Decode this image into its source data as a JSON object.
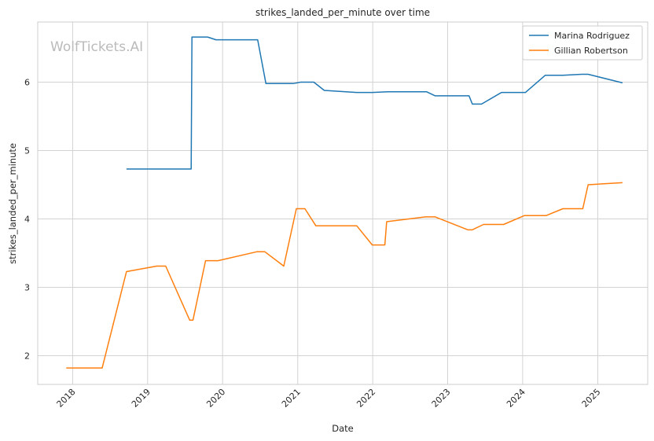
{
  "chart_data": {
    "type": "line",
    "title": "strikes_landed_per_minute over time",
    "xlabel": "Date",
    "ylabel": "strikes_landed_per_minute",
    "watermark": "WolfTickets.AI",
    "x_ticks": [
      "2018",
      "2019",
      "2020",
      "2021",
      "2022",
      "2023",
      "2024",
      "2025"
    ],
    "y_ticks": [
      "2",
      "3",
      "4",
      "5",
      "6"
    ],
    "xlim": [
      "2017-07-15",
      "2025-09-01"
    ],
    "ylim": [
      1.58,
      6.88
    ],
    "grid": true,
    "legend_position": "top-right",
    "series": [
      {
        "name": "Marina Rodriguez",
        "color": "#1f77b4",
        "points": [
          [
            "2018-09-20",
            4.73
          ],
          [
            "2019-08-01",
            4.73
          ],
          [
            "2019-08-05",
            6.66
          ],
          [
            "2019-10-20",
            6.66
          ],
          [
            "2019-11-30",
            6.62
          ],
          [
            "2020-06-20",
            6.62
          ],
          [
            "2020-07-30",
            5.98
          ],
          [
            "2020-12-10",
            5.98
          ],
          [
            "2021-01-15",
            6.0
          ],
          [
            "2021-03-20",
            6.0
          ],
          [
            "2021-05-10",
            5.88
          ],
          [
            "2021-10-15",
            5.85
          ],
          [
            "2021-12-30",
            5.85
          ],
          [
            "2022-03-15",
            5.86
          ],
          [
            "2022-09-20",
            5.86
          ],
          [
            "2022-11-01",
            5.8
          ],
          [
            "2023-04-15",
            5.8
          ],
          [
            "2023-05-01",
            5.68
          ],
          [
            "2023-06-15",
            5.68
          ],
          [
            "2023-09-20",
            5.85
          ],
          [
            "2024-01-15",
            5.85
          ],
          [
            "2024-04-20",
            6.1
          ],
          [
            "2024-07-15",
            6.1
          ],
          [
            "2024-10-15",
            6.115
          ],
          [
            "2024-11-15",
            6.115
          ],
          [
            "2025-05-01",
            5.99
          ]
        ]
      },
      {
        "name": "Gillian Robertson",
        "color": "#ff7f0e",
        "points": [
          [
            "2017-12-01",
            1.82
          ],
          [
            "2018-05-25",
            1.82
          ],
          [
            "2018-09-20",
            3.23
          ],
          [
            "2019-02-15",
            3.31
          ],
          [
            "2019-03-30",
            3.31
          ],
          [
            "2019-07-25",
            2.52
          ],
          [
            "2019-08-10",
            2.52
          ],
          [
            "2019-10-10",
            3.39
          ],
          [
            "2019-12-10",
            3.39
          ],
          [
            "2020-06-15",
            3.52
          ],
          [
            "2020-07-25",
            3.52
          ],
          [
            "2020-10-25",
            3.31
          ],
          [
            "2020-12-25",
            4.15
          ],
          [
            "2021-02-05",
            4.15
          ],
          [
            "2021-03-30",
            3.9
          ],
          [
            "2021-10-15",
            3.9
          ],
          [
            "2021-12-30",
            3.62
          ],
          [
            "2022-03-01",
            3.62
          ],
          [
            "2022-03-10",
            3.96
          ],
          [
            "2022-09-15",
            4.03
          ],
          [
            "2022-11-01",
            4.03
          ],
          [
            "2023-04-10",
            3.84
          ],
          [
            "2023-04-30",
            3.84
          ],
          [
            "2023-06-25",
            3.92
          ],
          [
            "2023-10-01",
            3.92
          ],
          [
            "2024-01-10",
            4.05
          ],
          [
            "2024-04-25",
            4.05
          ],
          [
            "2024-07-15",
            4.15
          ],
          [
            "2024-10-20",
            4.15
          ],
          [
            "2024-11-15",
            4.5
          ],
          [
            "2025-05-01",
            4.53
          ]
        ]
      }
    ]
  }
}
